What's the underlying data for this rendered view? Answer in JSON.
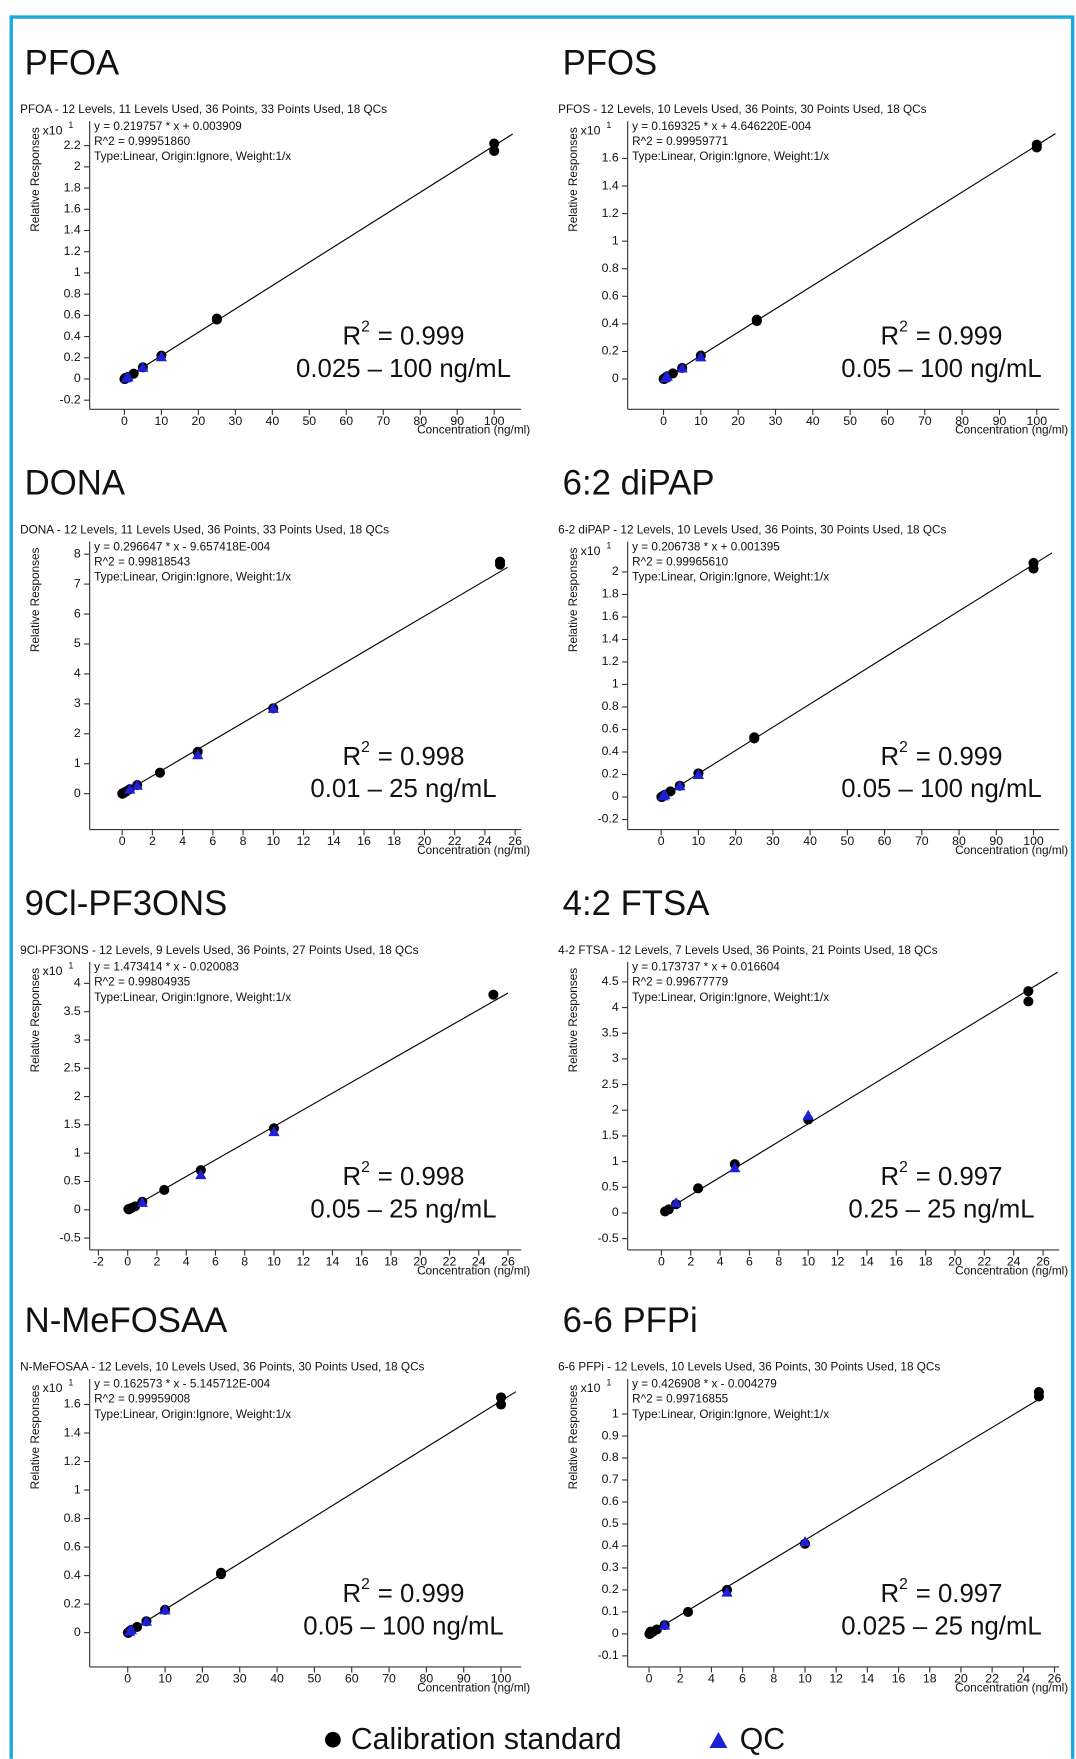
{
  "chart_data": [
    {
      "type": "scatter",
      "title": "PFOA",
      "subtitle": "PFOA - 12 Levels, 11 Levels Used, 36 Points, 33 Points Used, 18 QCs",
      "equation": [
        "y = 0.219757 * x  + 0.003909",
        "R^2 = 0.99951860",
        "Type:Linear, Origin:Ignore, Weight:1/x"
      ],
      "y_scale": "x10",
      "y_scale_exponent": 1,
      "ylabel": "Relative Responses",
      "xlabel": "Concentration (ng/ml)",
      "r2_symbol": "R",
      "r2_exponent": 2,
      "r2_value": "= 0.999",
      "range": "0.025 – 100 ng/mL",
      "xlim": [
        -9.4,
        107.3
      ],
      "xticks": [
        0,
        10,
        20,
        30,
        40,
        50,
        60,
        70,
        80,
        90,
        100
      ],
      "ylim": [
        -0.286,
        2.43
      ],
      "yticks": [
        -0.2,
        0,
        0.2,
        0.4,
        0.6,
        0.8,
        1,
        1.2,
        1.4,
        1.6,
        1.8,
        2,
        2.2
      ],
      "fit": {
        "x": [
          0,
          105
        ],
        "y": [
          0.0004,
          2.31
        ]
      },
      "standards": {
        "x": [
          0.025,
          0.05,
          0.1,
          0.25,
          0.5,
          1,
          2.5,
          5,
          10,
          25,
          25,
          100,
          100
        ],
        "y": [
          0,
          0,
          0,
          0.01,
          0.01,
          0.02,
          0.05,
          0.11,
          0.22,
          0.57,
          0.56,
          2.22,
          2.15
        ]
      },
      "qc": {
        "x": [
          0.5,
          1,
          5,
          10
        ],
        "y": [
          0.01,
          0.02,
          0.11,
          0.21
        ]
      }
    },
    {
      "type": "scatter",
      "title": "PFOS",
      "subtitle": "PFOS - 12 Levels, 10 Levels Used, 36 Points, 30 Points Used, 18 QCs",
      "equation": [
        "y = 0.169325 * x  + 4.646220E-004",
        "R^2 = 0.99959771",
        "Type:Linear, Origin:Ignore, Weight:1/x"
      ],
      "y_scale": "x10",
      "y_scale_exponent": 1,
      "ylabel": "Relative Responses",
      "xlabel": "Concentration (ng/ml)",
      "r2_symbol": "R",
      "r2_exponent": 2,
      "r2_value": "= 0.999",
      "range": "0.05 – 100 ng/mL",
      "xlim": [
        -9.6,
        106
      ],
      "xticks": [
        0,
        10,
        20,
        30,
        40,
        50,
        60,
        70,
        80,
        90,
        100
      ],
      "ylim": [
        -0.22,
        1.87
      ],
      "yticks": [
        0,
        0.2,
        0.4,
        0.6,
        0.8,
        1,
        1.2,
        1.4,
        1.6
      ],
      "fit": {
        "x": [
          0,
          105
        ],
        "y": [
          0,
          1.78
        ]
      },
      "standards": {
        "x": [
          0.05,
          0.1,
          0.25,
          0.5,
          1,
          2.5,
          5,
          10,
          25,
          25,
          100,
          100
        ],
        "y": [
          0,
          0,
          0,
          0.01,
          0.02,
          0.04,
          0.08,
          0.17,
          0.42,
          0.43,
          1.7,
          1.68
        ]
      },
      "qc": {
        "x": [
          0.5,
          1,
          5,
          10
        ],
        "y": [
          0.01,
          0.02,
          0.08,
          0.16
        ]
      }
    },
    {
      "type": "scatter",
      "title": "DONA",
      "subtitle": "DONA - 12 Levels, 11 Levels Used, 36 Points, 33 Points Used, 18 QCs",
      "equation": [
        "y = 0.296647 * x  - 9.657418E-004",
        "R^2 = 0.99818543",
        "Type:Linear, Origin:Ignore, Weight:1/x"
      ],
      "ylabel": "Relative Responses",
      "xlabel": "Concentration (ng/ml)",
      "r2_symbol": "R",
      "r2_exponent": 2,
      "r2_value": "= 0.998",
      "range": "0.01 – 25 ng/mL",
      "xlim": [
        -2.15,
        26.4
      ],
      "xticks": [
        0,
        2,
        4,
        6,
        8,
        10,
        12,
        14,
        16,
        18,
        20,
        22,
        24,
        26
      ],
      "ylim": [
        -1.2,
        8.42
      ],
      "yticks": [
        0,
        1,
        2,
        3,
        4,
        5,
        6,
        7,
        8
      ],
      "fit": {
        "x": [
          0,
          25.5
        ],
        "y": [
          0,
          7.56
        ]
      },
      "standards": {
        "x": [
          0.01,
          0.025,
          0.05,
          0.1,
          0.25,
          0.5,
          1,
          2.5,
          5,
          10,
          25,
          25
        ],
        "y": [
          0,
          0.01,
          0.01,
          0.03,
          0.07,
          0.15,
          0.29,
          0.7,
          1.4,
          2.85,
          7.65,
          7.75
        ]
      },
      "qc": {
        "x": [
          0.5,
          1,
          5,
          10
        ],
        "y": [
          0.15,
          0.28,
          1.3,
          2.85
        ]
      }
    },
    {
      "type": "scatter",
      "title": "6:2 diPAP",
      "subtitle": "6-2 diPAP - 12 Levels, 10 Levels Used, 36 Points, 30 Points Used, 18 QCs",
      "equation": [
        "y = 0.206738 * x  + 0.001395",
        "R^2 = 0.99965610",
        "Type:Linear, Origin:Ignore, Weight:1/x"
      ],
      "y_scale": "x10",
      "y_scale_exponent": 1,
      "ylabel": "Relative Responses",
      "xlabel": "Concentration (ng/ml)",
      "r2_symbol": "R",
      "r2_exponent": 2,
      "r2_value": "= 0.999",
      "range": "0.05 – 100 ng/mL",
      "xlim": [
        -9,
        106.9
      ],
      "xticks": [
        0,
        10,
        20,
        30,
        40,
        50,
        60,
        70,
        80,
        90,
        100
      ],
      "ylim": [
        -0.29,
        2.27
      ],
      "yticks": [
        -0.2,
        0,
        0.2,
        0.4,
        0.6,
        0.8,
        1,
        1.2,
        1.4,
        1.6,
        1.8,
        2
      ],
      "fit": {
        "x": [
          0,
          105
        ],
        "y": [
          0.0001,
          2.17
        ]
      },
      "standards": {
        "x": [
          0.05,
          0.1,
          0.25,
          0.5,
          1,
          2.5,
          5,
          10,
          25,
          25,
          100,
          100
        ],
        "y": [
          0,
          0,
          0,
          0.01,
          0.02,
          0.05,
          0.1,
          0.21,
          0.52,
          0.53,
          2.08,
          2.03
        ]
      },
      "qc": {
        "x": [
          0.5,
          1,
          5,
          10
        ],
        "y": [
          0.01,
          0.02,
          0.1,
          0.2
        ]
      }
    },
    {
      "type": "scatter",
      "title": "9Cl-PF3ONS",
      "subtitle": "9Cl-PF3ONS - 12 Levels, 9 Levels Used, 36 Points, 27 Points Used, 18 QCs",
      "equation": [
        "y = 1.473414 * x  - 0.020083",
        "R^2 = 0.99804935",
        "Type:Linear, Origin:Ignore, Weight:1/x"
      ],
      "y_scale": "x10",
      "y_scale_exponent": 1,
      "ylabel": "Relative Responses",
      "xlabel": "Concentration (ng/ml)",
      "r2_symbol": "R",
      "r2_exponent": 2,
      "r2_value": "= 0.998",
      "range": "0.05 – 25 ng/mL",
      "xlim": [
        -2.6,
        26.9
      ],
      "xticks": [
        -2,
        0,
        2,
        4,
        6,
        8,
        10,
        12,
        14,
        16,
        18,
        20,
        22,
        24,
        26
      ],
      "ylim": [
        -0.71,
        4.38
      ],
      "yticks": [
        -0.5,
        0,
        0.5,
        1,
        1.5,
        2,
        2.5,
        3,
        3.5,
        4
      ],
      "fit": {
        "x": [
          0,
          26
        ],
        "y": [
          -0.002,
          3.83
        ]
      },
      "standards": {
        "x": [
          0.05,
          0.1,
          0.25,
          0.5,
          1,
          2.5,
          5,
          10,
          25
        ],
        "y": [
          0.01,
          0.01,
          0.03,
          0.06,
          0.14,
          0.35,
          0.7,
          1.44,
          3.8
        ]
      },
      "qc": {
        "x": [
          1,
          5,
          10
        ],
        "y": [
          0.13,
          0.62,
          1.38
        ]
      }
    },
    {
      "type": "scatter",
      "title": "4:2 FTSA",
      "subtitle": "4-2 FTSA - 12 Levels, 7 Levels Used, 36 Points, 21 Points Used, 18 QCs",
      "equation": [
        "y = 0.173737 * x  + 0.016604",
        "R^2 = 0.99677779",
        "Type:Linear, Origin:Ignore, Weight:1/x"
      ],
      "ylabel": "Relative Responses",
      "xlabel": "Concentration (ng/ml)",
      "r2_symbol": "R",
      "r2_exponent": 2,
      "r2_value": "= 0.997",
      "range": "0.25 – 25 ng/mL",
      "xlim": [
        -2.3,
        27.1
      ],
      "xticks": [
        0,
        2,
        4,
        6,
        8,
        10,
        12,
        14,
        16,
        18,
        20,
        22,
        24,
        26
      ],
      "ylim": [
        -0.72,
        4.89
      ],
      "yticks": [
        -0.5,
        0,
        0.5,
        1,
        1.5,
        2,
        2.5,
        3,
        3.5,
        4,
        4.5
      ],
      "fit": {
        "x": [
          0,
          27
        ],
        "y": [
          0.0017,
          4.69
        ]
      },
      "standards": {
        "x": [
          0.25,
          0.5,
          1,
          2.5,
          5,
          10,
          25,
          25
        ],
        "y": [
          0.03,
          0.07,
          0.17,
          0.48,
          0.95,
          1.82,
          4.32,
          4.12
        ]
      },
      "qc": {
        "x": [
          1,
          5,
          10
        ],
        "y": [
          0.2,
          0.88,
          1.9
        ]
      }
    },
    {
      "type": "scatter",
      "title": "N-MeFOSAA",
      "subtitle": "N-MeFOSAA - 12 Levels, 10 Levels Used, 36 Points, 30 Points Used, 18 QCs",
      "equation": [
        "y = 0.162573 * x  - 5.145712E-004",
        "R^2 = 0.99959008",
        "Type:Linear, Origin:Ignore, Weight:1/x"
      ],
      "y_scale": "x10",
      "y_scale_exponent": 1,
      "ylabel": "Relative Responses",
      "xlabel": "Concentration (ng/ml)",
      "r2_symbol": "R",
      "r2_exponent": 2,
      "r2_value": "= 0.999",
      "range": "0.05 – 100 ng/mL",
      "xlim": [
        -10.2,
        105.4
      ],
      "xticks": [
        0,
        10,
        20,
        30,
        40,
        50,
        60,
        70,
        80,
        90,
        100
      ],
      "ylim": [
        -0.24,
        1.78
      ],
      "yticks": [
        0,
        0.2,
        0.4,
        0.6,
        0.8,
        1,
        1.2,
        1.4,
        1.6
      ],
      "fit": {
        "x": [
          0,
          104
        ],
        "y": [
          0,
          1.69
        ]
      },
      "standards": {
        "x": [
          0.05,
          0.1,
          0.25,
          0.5,
          1,
          2.5,
          5,
          10,
          25,
          25,
          100,
          100
        ],
        "y": [
          0,
          0,
          0,
          0.01,
          0.02,
          0.04,
          0.08,
          0.16,
          0.41,
          0.42,
          1.65,
          1.6
        ]
      },
      "qc": {
        "x": [
          0.5,
          1,
          5,
          10
        ],
        "y": [
          0.01,
          0.02,
          0.08,
          0.16
        ]
      }
    },
    {
      "type": "scatter",
      "title": "6-6 PFPi",
      "subtitle": "6-6 PFPi - 12 Levels, 10 Levels Used, 36 Points, 30 Points Used, 18 QCs",
      "equation": [
        "y = 0.426908 * x  - 0.004279",
        "R^2 = 0.99716855",
        "Type:Linear, Origin:Ignore, Weight:1/x"
      ],
      "y_scale": "x10",
      "y_scale_exponent": 1,
      "ylabel": "Relative Responses",
      "xlabel": "Concentration (ng/ml)",
      "r2_symbol": "R",
      "r2_exponent": 2,
      "r2_value": "= 0.997",
      "range": "0.025 – 25 ng/mL",
      "xlim": [
        -1.37,
        26.3
      ],
      "xticks": [
        0,
        2,
        4,
        6,
        8,
        10,
        12,
        14,
        16,
        18,
        20,
        22,
        24,
        26
      ],
      "ylim": [
        -0.15,
        1.16
      ],
      "yticks": [
        -0.1,
        0,
        0.1,
        0.2,
        0.3,
        0.4,
        0.5,
        0.6,
        0.7,
        0.8,
        0.9,
        1
      ],
      "fit": {
        "x": [
          0,
          25
        ],
        "y": [
          0,
          1.067
        ]
      },
      "standards": {
        "x": [
          0.025,
          0.05,
          0.1,
          0.25,
          0.5,
          1,
          2.5,
          5,
          10,
          25,
          25
        ],
        "y": [
          0,
          0,
          0.01,
          0.01,
          0.02,
          0.04,
          0.1,
          0.2,
          0.41,
          1.1,
          1.08
        ]
      },
      "qc": {
        "x": [
          1,
          5,
          10
        ],
        "y": [
          0.04,
          0.19,
          0.42
        ]
      }
    }
  ],
  "legend": [
    {
      "name": "Calibration standard",
      "color": "#000000",
      "marker": "circle"
    },
    {
      "name": "QC",
      "color": "#1f1fd6",
      "marker": "triangle"
    }
  ]
}
